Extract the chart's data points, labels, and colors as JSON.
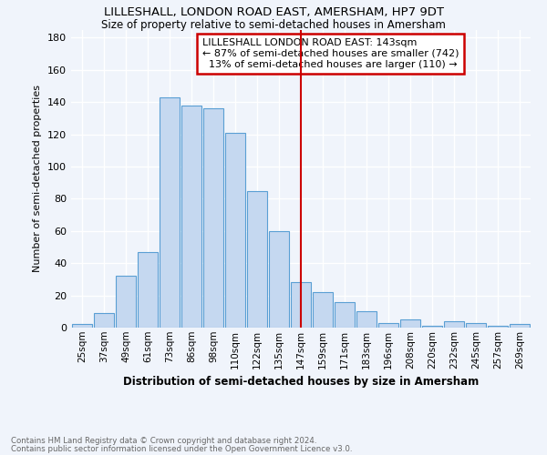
{
  "title": "LILLESHALL, LONDON ROAD EAST, AMERSHAM, HP7 9DT",
  "subtitle": "Size of property relative to semi-detached houses in Amersham",
  "xlabel": "Distribution of semi-detached houses by size in Amersham",
  "ylabel": "Number of semi-detached properties",
  "categories": [
    "25sqm",
    "37sqm",
    "49sqm",
    "61sqm",
    "73sqm",
    "86sqm",
    "98sqm",
    "110sqm",
    "122sqm",
    "135sqm",
    "147sqm",
    "159sqm",
    "171sqm",
    "183sqm",
    "196sqm",
    "208sqm",
    "220sqm",
    "232sqm",
    "245sqm",
    "257sqm",
    "269sqm"
  ],
  "values": [
    2,
    9,
    32,
    47,
    143,
    138,
    136,
    121,
    85,
    60,
    28,
    22,
    16,
    10,
    3,
    5,
    1,
    4,
    3,
    1,
    2
  ],
  "bar_color": "#c5d8f0",
  "bar_edge_color": "#5a9fd4",
  "marker_line_index": 10,
  "marker_label": "LILLESHALL LONDON ROAD EAST: 143sqm",
  "pct_smaller": "87% of semi-detached houses are smaller (742)",
  "pct_larger": "13% of semi-detached houses are larger (110)",
  "vline_color": "#cc0000",
  "annotation_box_color": "#cc0000",
  "ylim": [
    0,
    185
  ],
  "yticks": [
    0,
    20,
    40,
    60,
    80,
    100,
    120,
    140,
    160,
    180
  ],
  "bg_color": "#f0f4fb",
  "grid_color": "#ffffff",
  "footer_line1": "Contains HM Land Registry data © Crown copyright and database right 2024.",
  "footer_line2": "Contains public sector information licensed under the Open Government Licence v3.0."
}
